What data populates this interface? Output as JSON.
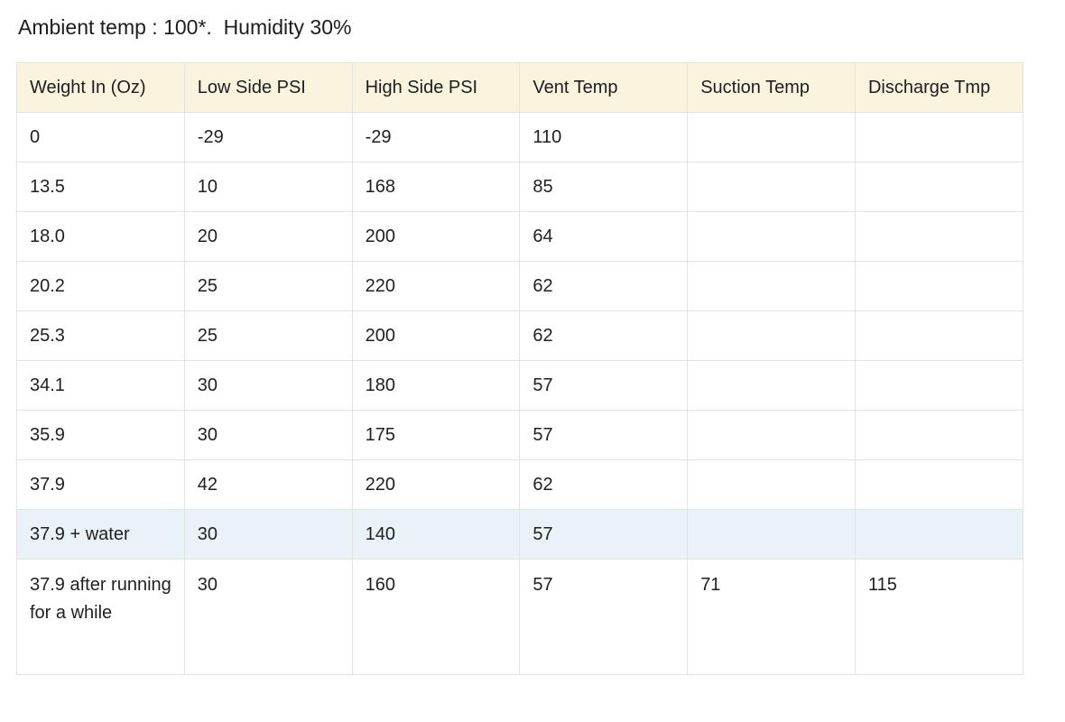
{
  "heading": "Ambient temp : 100*.  Humidity 30%",
  "table": {
    "columns": [
      "Weight In (Oz)",
      "Low Side PSI",
      "High Side PSI",
      "Vent Temp",
      "Suction Temp",
      "Discharge Tmp"
    ],
    "rows": [
      [
        "0",
        "-29",
        "-29",
        "110",
        "",
        ""
      ],
      [
        "13.5",
        "10",
        "168",
        "85",
        "",
        ""
      ],
      [
        "18.0",
        "20",
        "200",
        "64",
        "",
        ""
      ],
      [
        "20.2",
        "25",
        "220",
        "62",
        "",
        ""
      ],
      [
        "25.3",
        "25",
        "200",
        "62",
        "",
        ""
      ],
      [
        "34.1",
        "30",
        "180",
        "57",
        "",
        ""
      ],
      [
        "35.9",
        "30",
        "175",
        "57",
        "",
        ""
      ],
      [
        "37.9",
        "42",
        "220",
        "62",
        "",
        ""
      ],
      [
        "37.9 + water",
        "30",
        "140",
        "57",
        "",
        ""
      ],
      [
        "37.9 after running for a while",
        "30",
        "160",
        "57",
        "71",
        "115"
      ]
    ]
  },
  "colors": {
    "header_background": "#faf4df",
    "highlight_row_background": "#e9f2f7",
    "border": "#e3e3e3"
  }
}
